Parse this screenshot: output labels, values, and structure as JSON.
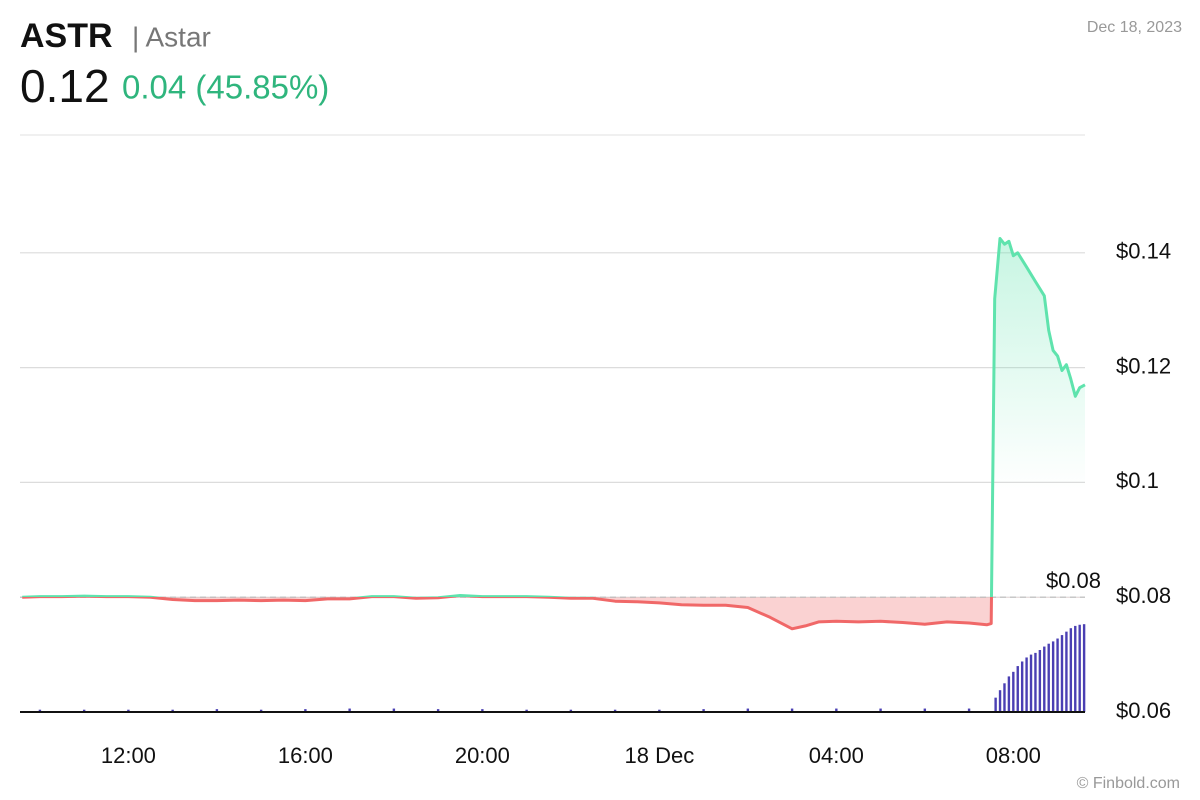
{
  "header": {
    "symbol": "ASTR",
    "name": "| Astar",
    "price": "0.12",
    "change": "0.04 (45.85%)",
    "date": "Dec 18, 2023",
    "credit": "© Finbold.com"
  },
  "chart_data": {
    "type": "line",
    "x": [
      9.6,
      10,
      10.5,
      11,
      11.5,
      12,
      12.5,
      13,
      13.5,
      14,
      14.5,
      15,
      15.5,
      16,
      16.5,
      17,
      17.5,
      18,
      18.5,
      19,
      19.5,
      20,
      20.5,
      21,
      21.5,
      22,
      22.5,
      23,
      23.5,
      24,
      24.5,
      25,
      25.5,
      26,
      26.5,
      27,
      27.3,
      27.6,
      28,
      28.5,
      29,
      29.5,
      30,
      30.5,
      31,
      31.4,
      31.5,
      31.58,
      31.7,
      31.8,
      31.9,
      32.0,
      32.1,
      32.3,
      32.5,
      32.7,
      32.8,
      32.9,
      33.0,
      33.1,
      33.2,
      33.3,
      33.4,
      33.5,
      33.62
    ],
    "values": [
      0.08,
      0.0801,
      0.0801,
      0.0802,
      0.0801,
      0.0801,
      0.08,
      0.0796,
      0.0794,
      0.0794,
      0.0795,
      0.0794,
      0.0795,
      0.0794,
      0.0797,
      0.0797,
      0.0801,
      0.0801,
      0.0798,
      0.0799,
      0.0803,
      0.0801,
      0.0801,
      0.0801,
      0.08,
      0.0798,
      0.0798,
      0.0793,
      0.0792,
      0.079,
      0.0787,
      0.0786,
      0.0786,
      0.0782,
      0.0765,
      0.0745,
      0.075,
      0.0757,
      0.0758,
      0.0757,
      0.0758,
      0.0756,
      0.0753,
      0.0757,
      0.0755,
      0.0752,
      0.0754,
      0.132,
      0.1425,
      0.1415,
      0.142,
      0.1395,
      0.14,
      0.1375,
      0.135,
      0.1325,
      0.1265,
      0.123,
      0.122,
      0.1195,
      0.1205,
      0.118,
      0.115,
      0.1165,
      0.117
    ],
    "up_color": "#5fe3ad",
    "down_color": "#f06868",
    "baseline": {
      "value": 0.08,
      "label": "$0.08"
    },
    "xlim": [
      9.55,
      33.62
    ],
    "xticks": [
      {
        "value": 12,
        "label": "12:00"
      },
      {
        "value": 16,
        "label": "16:00"
      },
      {
        "value": 20,
        "label": "20:00"
      },
      {
        "value": 24,
        "label": "18 Dec"
      },
      {
        "value": 28,
        "label": "04:00"
      },
      {
        "value": 32,
        "label": "08:00"
      }
    ],
    "ylim": [
      0.06,
      0.16
    ],
    "yticks": [
      {
        "value": 0.06,
        "label": "$0.06"
      },
      {
        "value": 0.08,
        "label": "$0.08"
      },
      {
        "value": 0.1,
        "label": "$0.1"
      },
      {
        "value": 0.12,
        "label": "$0.12"
      },
      {
        "value": 0.14,
        "label": "$0.14"
      }
    ],
    "grid": true,
    "volume": {
      "color": "#4a3fb3",
      "y2lim": [
        0,
        100
      ],
      "x": [
        10,
        11,
        12,
        13,
        14,
        15,
        16,
        17,
        18,
        19,
        20,
        21,
        22,
        23,
        24,
        25,
        26,
        27,
        28,
        29,
        30,
        31,
        31.6,
        31.7,
        31.8,
        31.9,
        32.0,
        32.1,
        32.2,
        32.3,
        32.4,
        32.5,
        32.6,
        32.7,
        32.8,
        32.9,
        33.0,
        33.1,
        33.2,
        33.3,
        33.4,
        33.5,
        33.6
      ],
      "values": [
        0.4,
        0.4,
        0.4,
        0.4,
        0.5,
        0.4,
        0.5,
        0.6,
        0.6,
        0.5,
        0.5,
        0.4,
        0.4,
        0.4,
        0.4,
        0.5,
        0.6,
        0.6,
        0.6,
        0.6,
        0.6,
        0.6,
        2.5,
        3.8,
        5.0,
        6.2,
        7.0,
        8.0,
        8.8,
        9.5,
        10.0,
        10.3,
        10.8,
        11.4,
        11.9,
        12.3,
        12.8,
        13.4,
        14.0,
        14.6,
        15.0,
        15.2,
        15.3
      ]
    }
  }
}
